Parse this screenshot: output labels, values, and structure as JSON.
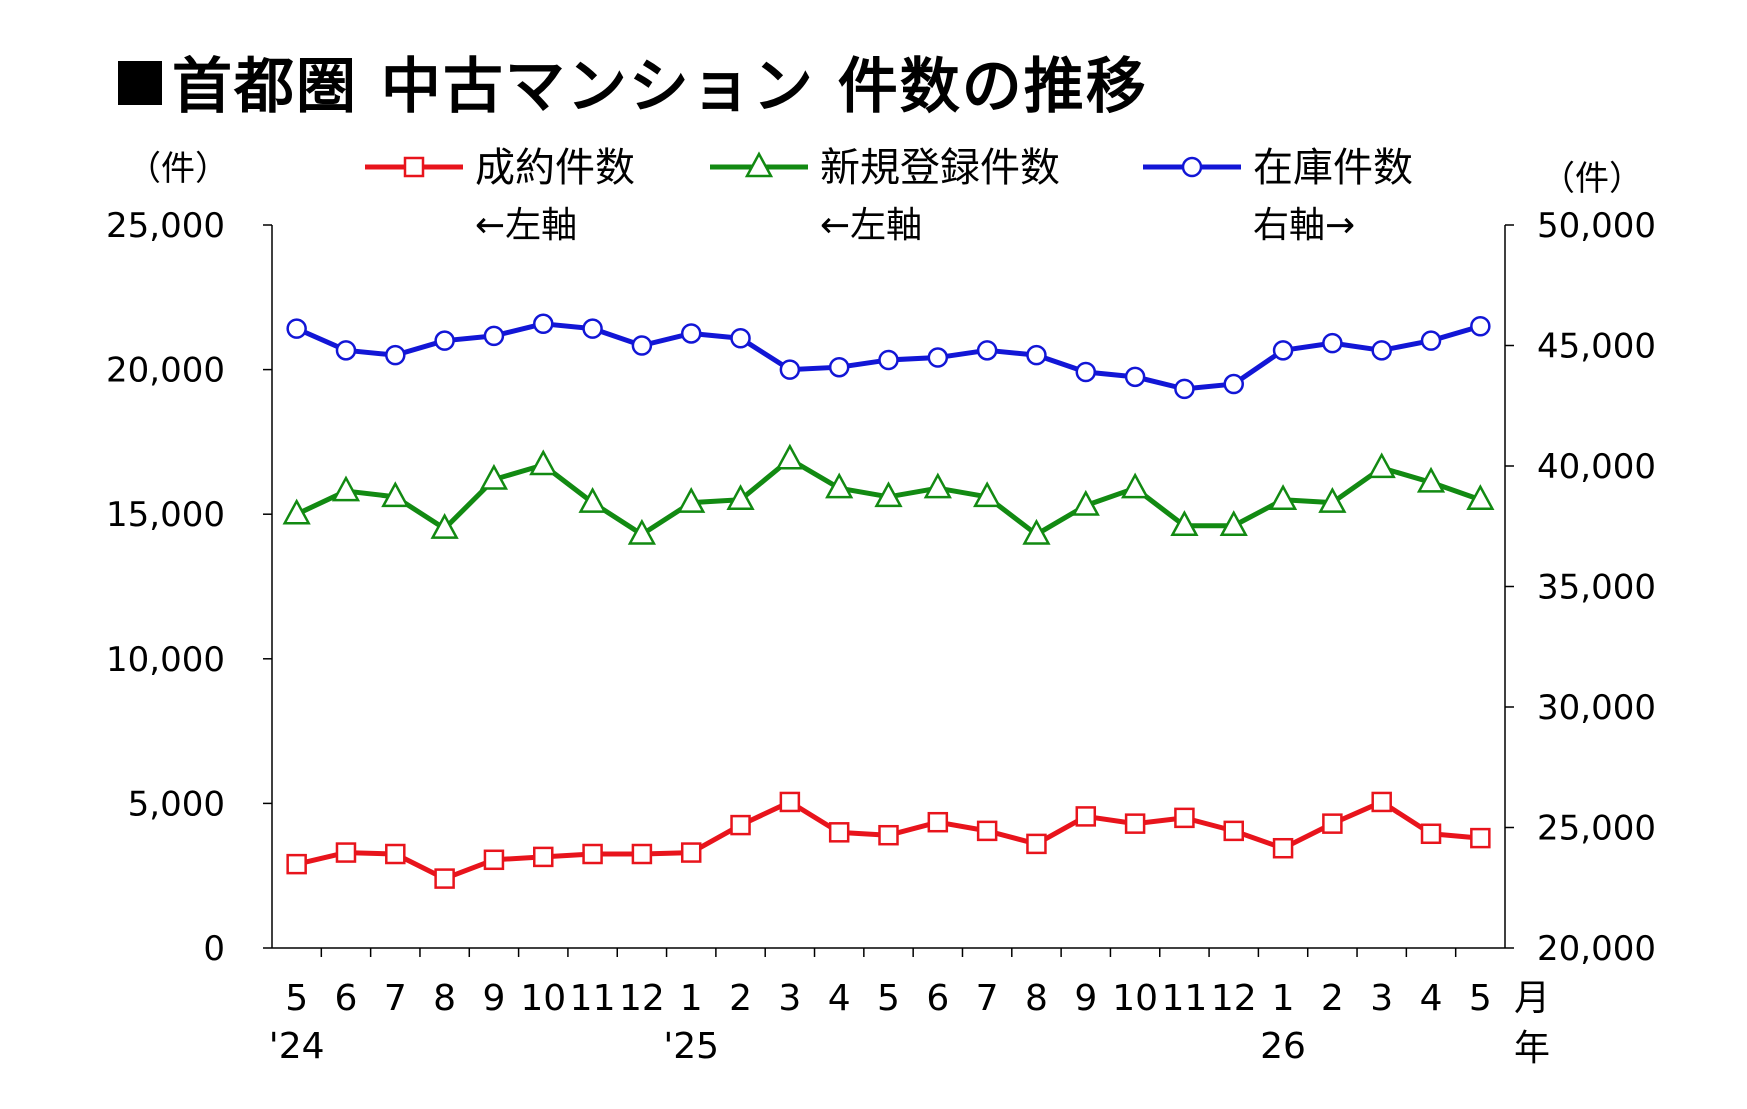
{
  "title": "首都圏 中古マンション 件数の推移",
  "units": {
    "left": "（件）",
    "right": "（件）"
  },
  "legend": [
    {
      "label": "成約件数",
      "axis_note": "←左軸",
      "color": "#e8141c",
      "marker": "square"
    },
    {
      "label": "新規登録件数",
      "axis_note": "←左軸",
      "color": "#128a12",
      "marker": "triangle"
    },
    {
      "label": "在庫件数",
      "axis_note": "右軸→",
      "color": "#1216d6",
      "marker": "circle"
    }
  ],
  "axis_labels": {
    "month_suffix": "月",
    "year_suffix": "年"
  },
  "chart_data": {
    "type": "line",
    "categories": [
      "2024-05",
      "2024-06",
      "2024-07",
      "2024-08",
      "2024-09",
      "2024-10",
      "2024-11",
      "2024-12",
      "2025-01",
      "2025-02",
      "2025-03",
      "2025-04",
      "2025-05",
      "2025-06",
      "2025-07",
      "2025-08",
      "2025-09",
      "2025-10",
      "2025-11",
      "2025-12",
      "2026-01",
      "2026-02",
      "2026-03",
      "2026-04",
      "2026-05"
    ],
    "x_tick_labels": [
      "5",
      "6",
      "7",
      "8",
      "9",
      "10",
      "11",
      "12",
      "1",
      "2",
      "3",
      "4",
      "5",
      "6",
      "7",
      "8",
      "9",
      "10",
      "11",
      "12",
      "1",
      "2",
      "3",
      "4",
      "5"
    ],
    "year_labels": [
      {
        "index": 0,
        "label": "'24"
      },
      {
        "index": 8,
        "label": "'25"
      },
      {
        "index": 20,
        "label": "26"
      }
    ],
    "left_axis": {
      "range": [
        0,
        25000
      ],
      "ticks": [
        0,
        5000,
        10000,
        15000,
        20000,
        25000
      ],
      "tick_labels": [
        "0",
        "5,000",
        "10,000",
        "15,000",
        "20,000",
        "25,000"
      ]
    },
    "right_axis": {
      "range": [
        20000,
        50000
      ],
      "ticks": [
        20000,
        25000,
        30000,
        35000,
        40000,
        45000,
        50000
      ],
      "tick_labels": [
        "20,000",
        "25,000",
        "30,000",
        "35,000",
        "40,000",
        "45,000",
        "50,000"
      ]
    },
    "grid": false,
    "legend_position": "top",
    "series": [
      {
        "name": "成約件数",
        "axis": "left",
        "color": "#e8141c",
        "marker": "square",
        "values": [
          2900,
          3300,
          3250,
          2400,
          3050,
          3150,
          3250,
          3250,
          3300,
          4250,
          5050,
          4000,
          3900,
          4350,
          4050,
          3600,
          4550,
          4300,
          4500,
          4050,
          3450,
          4300,
          5050,
          3950,
          3800
        ]
      },
      {
        "name": "新規登録件数",
        "axis": "left",
        "color": "#128a12",
        "marker": "triangle",
        "values": [
          15000,
          15800,
          15600,
          14500,
          16200,
          16700,
          15400,
          14300,
          15400,
          15500,
          16900,
          15900,
          15600,
          15900,
          15600,
          14300,
          15300,
          15900,
          14600,
          14600,
          15500,
          15400,
          16600,
          16100,
          15500
        ]
      },
      {
        "name": "在庫件数",
        "axis": "right",
        "color": "#1216d6",
        "marker": "circle",
        "values": [
          45700,
          44800,
          44600,
          45200,
          45400,
          45900,
          45700,
          45000,
          45500,
          45300,
          44000,
          44100,
          44400,
          44500,
          44800,
          44600,
          43900,
          43700,
          43200,
          43400,
          44800,
          45100,
          44800,
          45200,
          45800
        ]
      }
    ]
  }
}
